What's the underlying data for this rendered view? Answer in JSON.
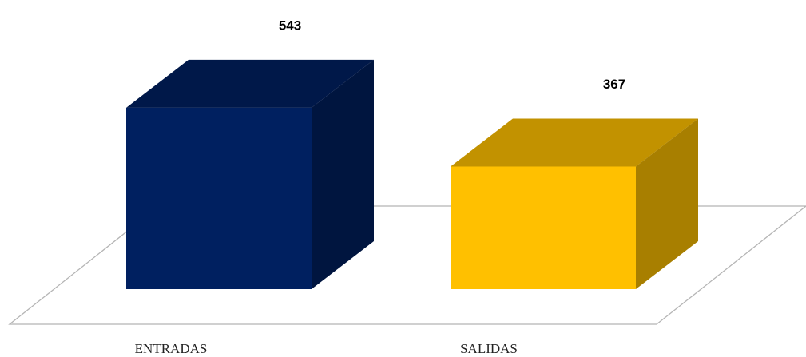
{
  "chart_data": {
    "type": "bar3d",
    "categories": [
      "ENTRADAS",
      "SALIDAS"
    ],
    "values": [
      543,
      367
    ],
    "colors": [
      "#002060",
      "#ffc000"
    ],
    "ylim": [
      0,
      600
    ]
  }
}
